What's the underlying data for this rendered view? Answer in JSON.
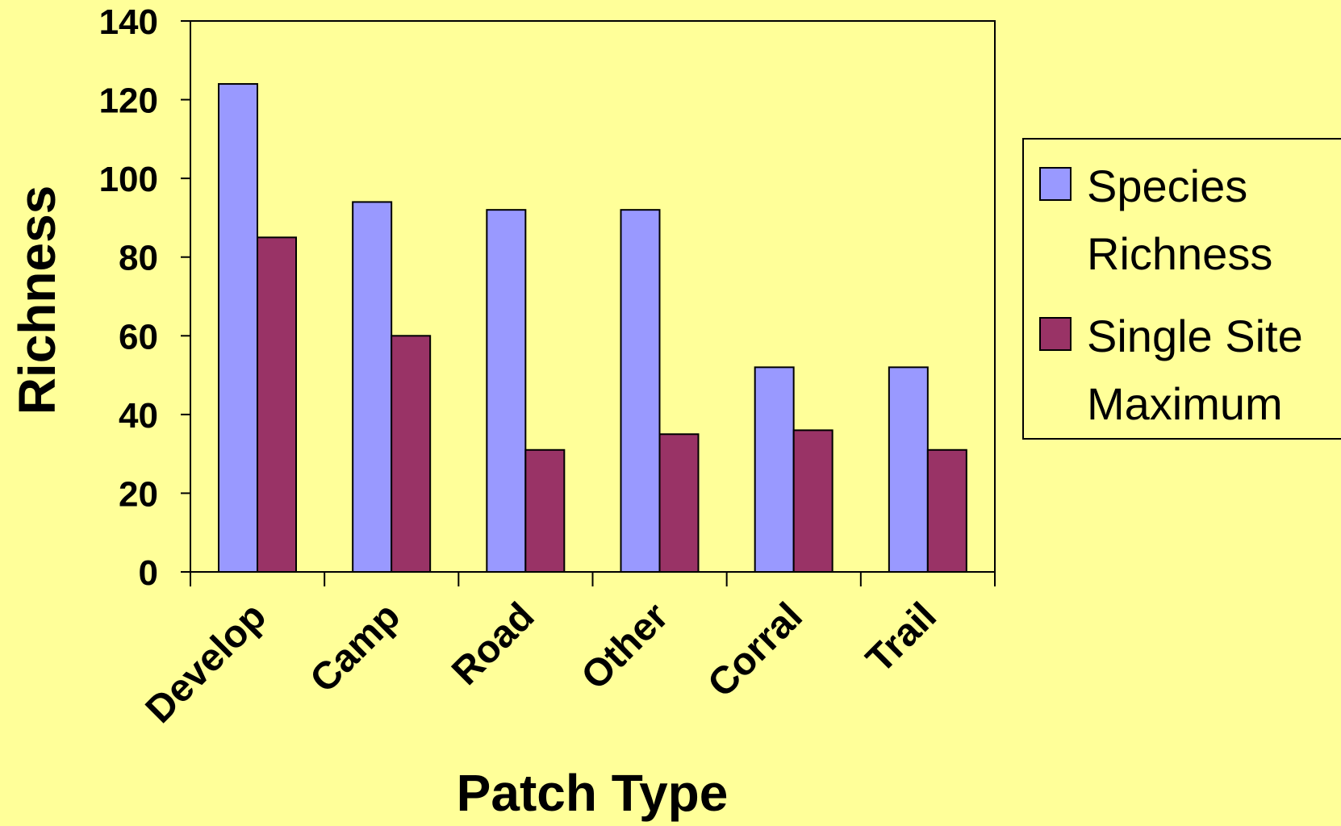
{
  "chart_data": {
    "type": "bar",
    "title": "",
    "xlabel": "Patch Type",
    "ylabel": "Richness",
    "categories": [
      "Develop",
      "Camp",
      "Road",
      "Other",
      "Corral",
      "Trail"
    ],
    "series": [
      {
        "name": "Species Richness",
        "legend_lines": [
          "Species",
          "Richness"
        ],
        "color": "#9999ff",
        "values": [
          124,
          94,
          92,
          92,
          52,
          52
        ]
      },
      {
        "name": "Single Site Maximum",
        "legend_lines": [
          "Single Site",
          "Maximum"
        ],
        "color": "#993366",
        "values": [
          85,
          60,
          31,
          35,
          36,
          31
        ]
      }
    ],
    "ylim": [
      0,
      140
    ],
    "yticks": [
      "0",
      "20",
      "40",
      "60",
      "80",
      "100",
      "120",
      "140"
    ],
    "ytick_values": [
      0,
      20,
      40,
      60,
      80,
      100,
      120,
      140
    ],
    "grid": false,
    "legend_position": "right",
    "background_color": "#ffff99",
    "plot_background_color": "#ffff99"
  }
}
